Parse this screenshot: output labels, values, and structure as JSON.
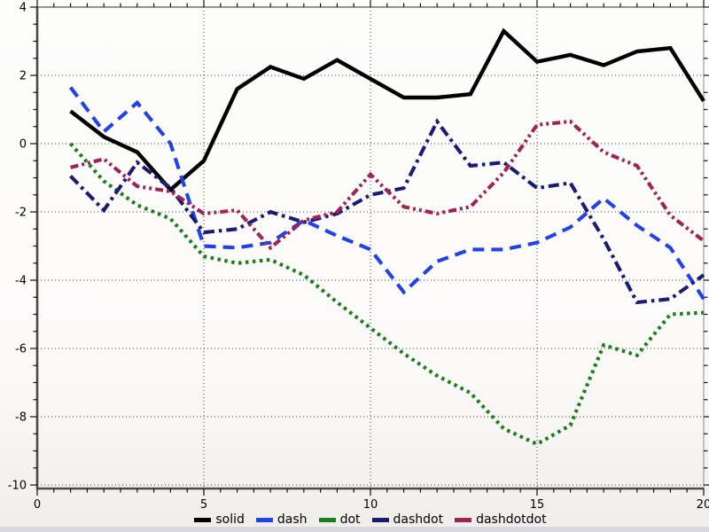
{
  "chart_data": {
    "type": "line",
    "title": "",
    "xlabel": "",
    "ylabel": "",
    "xlim": [
      0,
      20
    ],
    "ylim": [
      -10,
      4
    ],
    "x_ticks": [
      0,
      5,
      10,
      15,
      20
    ],
    "x_tick_labels": [
      "0",
      "5",
      "10",
      "15",
      "20"
    ],
    "y_ticks": [
      4,
      2,
      0,
      -2,
      -4,
      -6,
      -8,
      -10
    ],
    "y_tick_labels": [
      "4",
      "2",
      "0",
      "-2",
      "-4",
      "-6",
      "-8",
      "-10"
    ],
    "minor_tick_step": 0.5,
    "grid": "dotted-at-major-ticks",
    "legend_position": "bottom-center",
    "axis_color": "#4a4a4a",
    "grid_color": "#3a3a3a",
    "x": [
      1,
      2,
      3,
      4,
      5,
      6,
      7,
      8,
      9,
      10,
      11,
      12,
      13,
      14,
      15,
      16,
      17,
      18,
      19,
      20
    ],
    "series": [
      {
        "name": "solid",
        "line_style": "solid",
        "color": "#000000",
        "values": [
          0.95,
          0.2,
          -0.25,
          -1.35,
          -0.5,
          1.6,
          2.25,
          1.9,
          2.45,
          1.9,
          1.35,
          1.35,
          1.45,
          3.3,
          2.4,
          2.6,
          2.3,
          2.7,
          2.8,
          1.25
        ]
      },
      {
        "name": "dash",
        "line_style": "dash",
        "color": "#2042e8",
        "values": [
          1.65,
          0.35,
          1.2,
          0.0,
          -3.0,
          -3.05,
          -2.9,
          -2.25,
          -2.7,
          -3.1,
          -4.35,
          -3.45,
          -3.1,
          -3.1,
          -2.9,
          -2.45,
          -1.6,
          -2.4,
          -3.05,
          -4.55
        ]
      },
      {
        "name": "dot",
        "line_style": "dot",
        "color": "#1b7e1b",
        "values": [
          0.0,
          -1.1,
          -1.8,
          -2.2,
          -3.3,
          -3.5,
          -3.4,
          -3.85,
          -4.65,
          -5.4,
          -6.15,
          -6.8,
          -7.3,
          -8.35,
          -8.8,
          -8.25,
          -5.9,
          -6.2,
          -5.0,
          -4.95
        ]
      },
      {
        "name": "dashdot",
        "line_style": "dashdot",
        "color": "#1b1b74",
        "values": [
          -0.95,
          -1.95,
          -0.55,
          -1.3,
          -2.6,
          -2.5,
          -2.0,
          -2.3,
          -2.05,
          -1.5,
          -1.3,
          0.65,
          -0.65,
          -0.55,
          -1.3,
          -1.15,
          -2.8,
          -4.65,
          -4.55,
          -3.85
        ]
      },
      {
        "name": "dashdotdot",
        "line_style": "dashdotdot",
        "color": "#a02355",
        "values": [
          -0.7,
          -0.45,
          -1.25,
          -1.4,
          -2.05,
          -1.95,
          -3.05,
          -2.25,
          -2.0,
          -0.9,
          -1.85,
          -2.05,
          -1.85,
          -0.85,
          0.55,
          0.65,
          -0.25,
          -0.65,
          -2.1,
          -2.85
        ]
      }
    ]
  }
}
